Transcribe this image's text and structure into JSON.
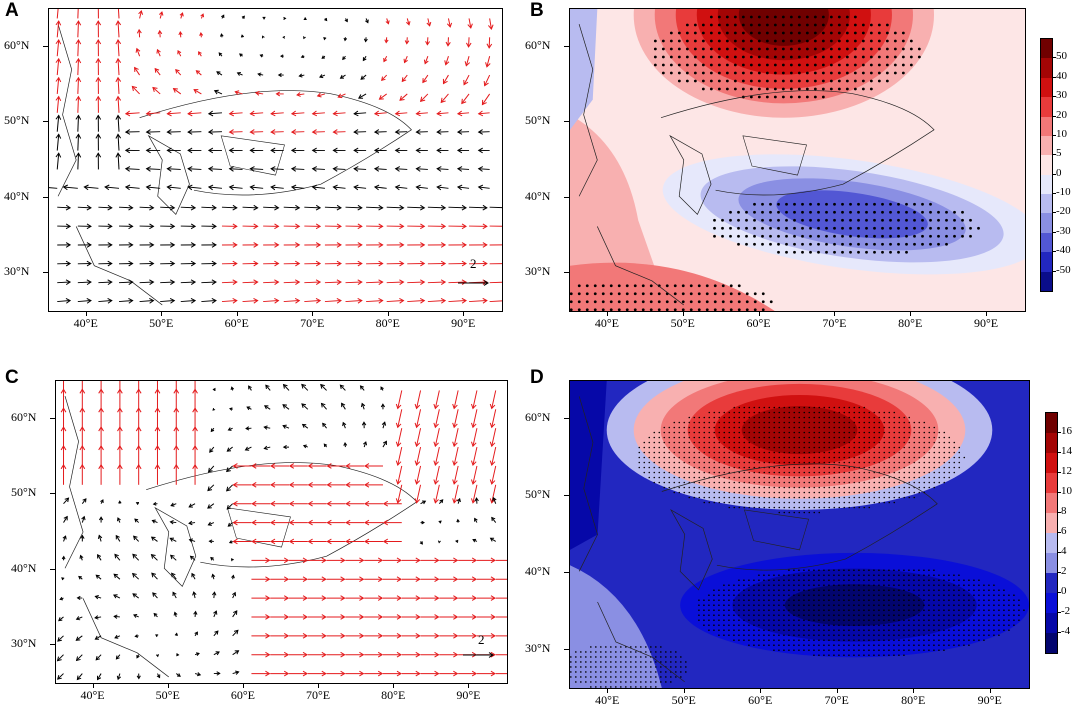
{
  "panels": [
    {
      "label": "A",
      "type": "vector",
      "title": ""
    },
    {
      "label": "B",
      "type": "contour",
      "title": ""
    },
    {
      "label": "C",
      "type": "vector",
      "title": ""
    },
    {
      "label": "D",
      "type": "contour",
      "title": ""
    }
  ],
  "axes": {
    "lat_ticks": [
      "60°N",
      "50°N",
      "40°N",
      "30°N"
    ],
    "lon_ticks": [
      "40°E",
      "50°E",
      "60°E",
      "70°E",
      "80°E",
      "90°E"
    ],
    "lat_values": [
      60,
      50,
      40,
      30
    ],
    "lon_values": [
      40,
      50,
      60,
      70,
      80,
      90
    ],
    "lon_range": [
      35,
      95
    ],
    "lat_range": [
      25,
      65
    ]
  },
  "reference_vector": {
    "A": "2",
    "C": "2"
  },
  "colorbar_B": {
    "labels": [
      "50",
      "40",
      "30",
      "20",
      "10",
      "5",
      "0",
      "-10",
      "-20",
      "-30",
      "-40",
      "-50"
    ],
    "colors": [
      "#700000",
      "#a30505",
      "#d01010",
      "#e83b3b",
      "#f27878",
      "#f8b0b0",
      "#fde6e6",
      "#e6e8fb",
      "#b8bbf0",
      "#8a8fe3",
      "#5257d4",
      "#2227c0",
      "#0a0d8a"
    ]
  },
  "colorbar_D": {
    "labels": [
      "16",
      "14",
      "12",
      "10",
      "8",
      "6",
      "4",
      "2",
      "0",
      "-2",
      "-4"
    ],
    "colors": [
      "#700000",
      "#a30505",
      "#d01010",
      "#e83b3b",
      "#f27878",
      "#f8b0b0",
      "#b8bbf0",
      "#8a8fe3",
      "#2227c0",
      "#0a0fd8",
      "#0608a8",
      "#03056e"
    ]
  },
  "colors": {
    "vector_black": "#000000",
    "vector_red": "#e41a1c",
    "coast": "#222222"
  }
}
